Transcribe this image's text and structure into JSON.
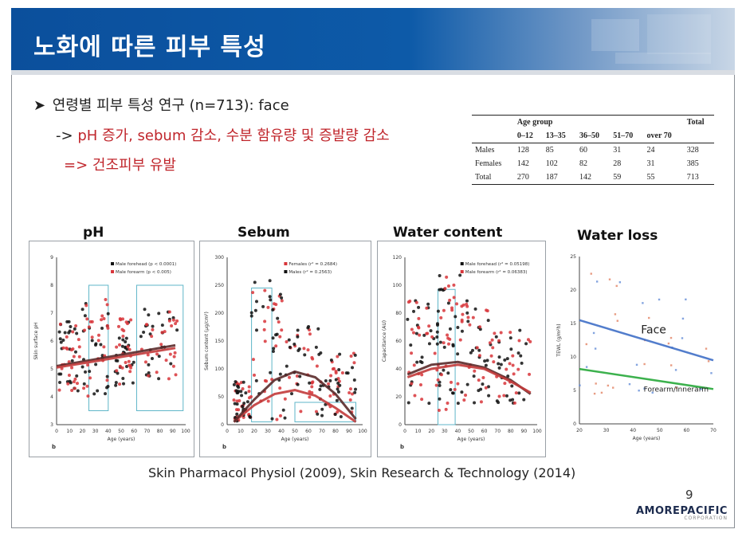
{
  "slide": {
    "title": "노화에 따른 피부 특성",
    "bullet": "연령별 피부 특성 연구 (n=713): face",
    "sub1_prefix": "-> ",
    "sub1": "pH 증가, sebum 감소, 수분 함유량 및 증발량 감소",
    "sub2": "=> 건조피부 유발",
    "citation": "Skin Pharmacol Physiol (2009), Skin Research & Technology (2014)",
    "page_number": "9",
    "logo": "AMOREPACIFIC",
    "logo_sub": "CORPORATION"
  },
  "age_table": {
    "group_header": "Age group",
    "total_header": "Total",
    "columns": [
      "0–12",
      "13–35",
      "36–50",
      "51–70",
      "over 70"
    ],
    "rows": [
      {
        "label": "Males",
        "values": [
          "128",
          "85",
          "60",
          "31",
          "24"
        ],
        "total": "328"
      },
      {
        "label": "Females",
        "values": [
          "142",
          "102",
          "82",
          "28",
          "31"
        ],
        "total": "385"
      },
      {
        "label": "Total",
        "values": [
          "270",
          "187",
          "142",
          "59",
          "55"
        ],
        "total": "713"
      }
    ]
  },
  "colors": {
    "banner": "#0d5aa8",
    "red_text": "#c0262c",
    "male": "#111111",
    "female": "#d8353a",
    "face_line": "#3f6fc6",
    "forearm_line": "#27a83a",
    "box": "#5fb6c8"
  },
  "chart_data": [
    {
      "type": "scatter",
      "title": "pH",
      "ylabel": "Skin surface pH",
      "xlabel": "Age (years)",
      "panel_label": "b",
      "xlim": [
        0,
        100
      ],
      "ylim": [
        3,
        9
      ],
      "xticks": [
        "0",
        "10",
        "20",
        "30",
        "40",
        "50",
        "60",
        "70",
        "80",
        "90",
        "100"
      ],
      "yticks": [
        "3",
        "4",
        "5",
        "6",
        "7",
        "8",
        "9"
      ],
      "series": [
        {
          "name": "Male forehead (p < 0.0001)",
          "color": "#111111",
          "trend": [
            [
              0,
              5.1
            ],
            [
              92,
              5.85
            ]
          ]
        },
        {
          "name": "Male forearm (p < 0.005)",
          "color": "#d8353a",
          "trend": [
            [
              0,
              5.05
            ],
            [
              92,
              5.75
            ]
          ]
        }
      ],
      "cluster": [
        [
          2,
          18,
          4.2,
          6.8
        ],
        [
          20,
          40,
          4.0,
          7.5
        ],
        [
          45,
          60,
          4.3,
          6.8
        ],
        [
          65,
          95,
          4.6,
          7.2
        ]
      ],
      "boxes": [
        [
          25,
          40,
          3.5,
          8.0
        ],
        [
          62,
          98,
          3.5,
          8.0
        ]
      ]
    },
    {
      "type": "scatter",
      "title": "Sebum",
      "ylabel": "Sebum content (µg/cm²)",
      "xlabel": "Age (years)",
      "panel_label": "b",
      "xlim": [
        0,
        100
      ],
      "ylim": [
        0,
        300
      ],
      "xticks": [
        "0",
        "10",
        "20",
        "30",
        "40",
        "50",
        "60",
        "70",
        "80",
        "90",
        "100"
      ],
      "yticks": [
        "0",
        "50",
        "100",
        "150",
        "200",
        "250",
        "300"
      ],
      "series": [
        {
          "name": "Females (r² = 0.2684)",
          "color": "#d8353a",
          "trend": [
            [
              5,
              5
            ],
            [
              20,
              35
            ],
            [
              35,
              55
            ],
            [
              50,
              62
            ],
            [
              65,
              52
            ],
            [
              80,
              30
            ],
            [
              95,
              5
            ]
          ]
        },
        {
          "name": "Males (r² = 0.2563)",
          "color": "#111111",
          "trend": [
            [
              5,
              5
            ],
            [
              20,
              45
            ],
            [
              35,
              80
            ],
            [
              50,
              95
            ],
            [
              65,
              85
            ],
            [
              80,
              55
            ],
            [
              95,
              10
            ]
          ]
        }
      ],
      "cluster": [
        [
          5,
          18,
          5,
          80
        ],
        [
          18,
          42,
          5,
          260
        ],
        [
          42,
          70,
          5,
          180
        ],
        [
          70,
          95,
          5,
          130
        ]
      ],
      "boxes": [
        [
          18,
          33,
          5,
          245
        ],
        [
          50,
          95,
          5,
          40
        ]
      ]
    },
    {
      "type": "scatter",
      "title": "Water content",
      "ylabel": "Capacitance (AU)",
      "xlabel": "Age (years)",
      "panel_label": "b",
      "xlim": [
        0,
        100
      ],
      "ylim": [
        0,
        120
      ],
      "xticks": [
        "0",
        "10",
        "20",
        "30",
        "40",
        "50",
        "60",
        "70",
        "80",
        "90",
        "100"
      ],
      "yticks": [
        "0",
        "20",
        "40",
        "60",
        "80",
        "100",
        "120"
      ],
      "series": [
        {
          "name": "Male forehead (r² = 0.05198)",
          "color": "#111111",
          "trend": [
            [
              2,
              36
            ],
            [
              20,
              43
            ],
            [
              40,
              45
            ],
            [
              60,
              41
            ],
            [
              80,
              32
            ],
            [
              95,
              22
            ]
          ]
        },
        {
          "name": "Male forearm (r² = 0.06383)",
          "color": "#d8353a",
          "trend": [
            [
              2,
              34
            ],
            [
              20,
              40
            ],
            [
              40,
              43
            ],
            [
              60,
              40
            ],
            [
              80,
              31
            ],
            [
              95,
              23
            ]
          ]
        }
      ],
      "cluster": [
        [
          2,
          25,
          15,
          90
        ],
        [
          25,
          42,
          10,
          110
        ],
        [
          42,
          65,
          10,
          90
        ],
        [
          65,
          95,
          15,
          70
        ]
      ],
      "boxes": [
        [
          25,
          38,
          0,
          97
        ]
      ]
    },
    {
      "type": "scatter",
      "title": "Water loss",
      "ylabel": "TEWL (g/m²h)",
      "xlabel": "Age (years)",
      "xlim": [
        20,
        70
      ],
      "ylim": [
        0,
        25
      ],
      "xticks": [
        "20",
        "30",
        "40",
        "50",
        "60",
        "70"
      ],
      "yticks": [
        "0",
        "5",
        "10",
        "15",
        "20",
        "25"
      ],
      "series": [
        {
          "name": "Face",
          "color": "#3f6fc6",
          "trend": [
            [
              20,
              15.5
            ],
            [
              70,
              9.5
            ]
          ]
        },
        {
          "name": "Forearm/Innerarm",
          "color": "#27a83a",
          "trend": [
            [
              20,
              8.2
            ],
            [
              70,
              5.2
            ]
          ]
        }
      ],
      "cluster": [
        [
          20,
          70,
          4,
          23
        ]
      ]
    }
  ]
}
